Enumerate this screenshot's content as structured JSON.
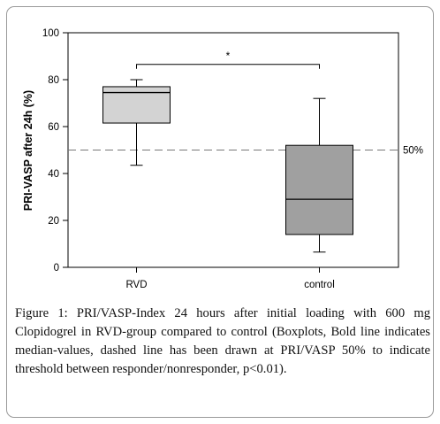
{
  "chart_data": {
    "type": "boxplot",
    "ylabel": "PRI-VASP after 24h (%)",
    "ylim": [
      0,
      100
    ],
    "yticks": [
      0,
      20,
      40,
      60,
      80,
      100
    ],
    "categories": [
      "RVD",
      "control"
    ],
    "boxes": [
      {
        "category": "RVD",
        "whisker_low": 43.5,
        "q1": 61.5,
        "median": 74.5,
        "q3": 77,
        "whisker_high": 80,
        "color": "#d3d3d3"
      },
      {
        "category": "control",
        "whisker_low": 6.5,
        "q1": 14,
        "median": 29,
        "q3": 52,
        "whisker_high": 72,
        "color": "#a0a0a0"
      }
    ],
    "threshold": {
      "value": 50,
      "label": "50%",
      "style": "dashed"
    },
    "significance": {
      "from": "RVD",
      "to": "control",
      "y": 86.5,
      "label": "*"
    },
    "grid": false
  },
  "caption": {
    "label": "Figure 1:",
    "text": "PRI/VASP-Index 24 hours after initial loading with 600 mg Clopidogrel in RVD-group compared to control (Boxplots, Bold line indicates median-values, dashed line has been drawn at PRI/VASP 50% to indicate threshold between responder/nonresponder, p<0.01)."
  }
}
